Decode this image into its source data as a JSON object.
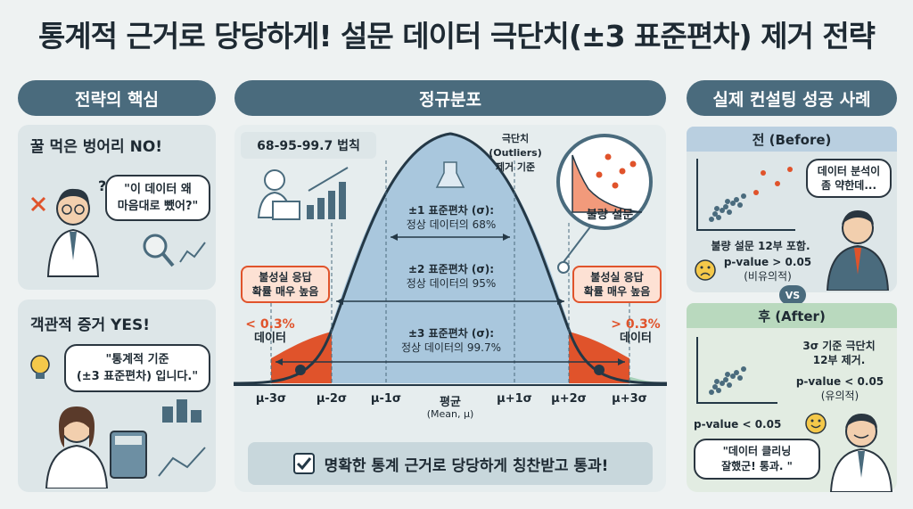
{
  "title": "통계적 근거로 당당하게! 설문 데이터 극단치(±3 표준편차) 제거 전략",
  "left": {
    "header": "전략의 핵심",
    "card1": {
      "heading": "꿀 먹은 벙어리 NO!",
      "bubble_line1": "\"이 데이터 왜",
      "bubble_line2": "마음대로 뺐어?\""
    },
    "card2": {
      "heading": "객관적 증거 YES!",
      "bubble_line1": "\"통계적 기준",
      "bubble_line2": "(±3 표준편차) 입니다.\""
    }
  },
  "center": {
    "header": "정규분포",
    "rule": "68-95-99.7 법칙",
    "outlier_note": {
      "l1": "극단치",
      "l2": "(Outliers)",
      "l3": "제거 기준"
    },
    "magnifier_label": "불량 설문",
    "sigma1": {
      "l1": "±1 표준편차 (σ):",
      "l2": "정상 데이터의 68%"
    },
    "sigma2": {
      "l1": "±2 표준편차 (σ):",
      "l2": "정상 데이터의 95%"
    },
    "sigma3": {
      "l1": "±3 표준편차 (σ):",
      "l2": "정상 데이터의 99.7%"
    },
    "left_warn": {
      "l1": "불성실 응답",
      "l2": "확률 매우 높음"
    },
    "right_warn": {
      "l1": "불성실 응답",
      "l2": "확률 매우 높음"
    },
    "left_pct": "< 0.3%",
    "left_pct_sub": "데이터",
    "right_pct": "> 0.3%",
    "right_pct_sub": "데이터",
    "axis": {
      "m3": "μ-3σ",
      "m2": "μ-2σ",
      "m1": "μ-1σ",
      "mean": "평균",
      "mean_sub": "(Mean, μ)",
      "p1": "μ+1σ",
      "p2": "μ+2σ",
      "p3": "μ+3σ"
    },
    "conclusion": "명확한 통계 근거로 당당하게 칭찬받고 통과!"
  },
  "right": {
    "header": "실제 컨설팅 성공 사례",
    "before": {
      "title": "전 (Before)",
      "bubble_line1": "데이터 분석이",
      "bubble_line2": "좀 약한데...",
      "note": "불량 설문 12부 포함.",
      "p": "p-value > 0.05",
      "p_sub": "(비유의적)"
    },
    "vs": "VS",
    "after": {
      "title": "후 (After)",
      "note_l1": "3σ 기준 극단치",
      "note_l2": "12부 제거.",
      "p": "p-value < 0.05",
      "p_sub": "(유의적)",
      "p_left": "p-value < 0.05",
      "bubble_line1": "\"데이터 클리닝",
      "bubble_line2": "잘했군! 통과. \""
    }
  },
  "colors": {
    "primary": "#4a6b7d",
    "accent_red": "#e0532b",
    "bell_blue": "#a9c7dd",
    "bell_green": "#a8d0b8",
    "before_blue": "#b9cfe0",
    "after_green": "#b9d9be"
  }
}
